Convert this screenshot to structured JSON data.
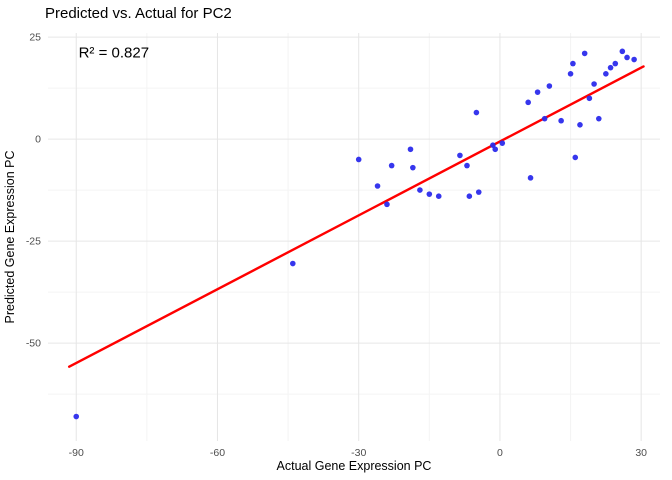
{
  "chart_data": {
    "type": "scatter",
    "title": "Predicted vs. Actual for PC2",
    "xlabel": "Actual Gene Expression PC",
    "ylabel": "Predicted Gene Expression PC",
    "xlim": [
      -96,
      34
    ],
    "ylim": [
      -74,
      26
    ],
    "x_ticks": [
      -90,
      -60,
      -30,
      0,
      30
    ],
    "y_ticks": [
      25,
      0,
      -25,
      -50
    ],
    "x_minor_ticks": [
      -75,
      -45,
      -15,
      15
    ],
    "y_minor_ticks": [
      12.5,
      -12.5,
      -37.5,
      -62.5
    ],
    "grid": true,
    "legend": "none",
    "annotation": {
      "text": "R² = 0.827",
      "x": -89.5,
      "y": 20
    },
    "r_squared": 0.827,
    "colors": {
      "point": "#2b2bec",
      "line": "#ff0000",
      "grid_major": "#e6e6e6",
      "grid_minor": "#f4f4f4",
      "tick_label": "#4d4d4d",
      "axis_title": "#000000",
      "background": "#ffffff"
    },
    "regression_line": {
      "x1": -91.5,
      "y1": -55.8,
      "x2": 30.5,
      "y2": 17.8
    },
    "points": [
      [
        -90,
        -68
      ],
      [
        -44,
        -30.5
      ],
      [
        -30,
        -5
      ],
      [
        -26,
        -11.5
      ],
      [
        -24,
        -16
      ],
      [
        -23,
        -6.5
      ],
      [
        -19,
        -2.5
      ],
      [
        -18.5,
        -7
      ],
      [
        -17,
        -12.5
      ],
      [
        -15,
        -13.5
      ],
      [
        -13,
        -14
      ],
      [
        -8.5,
        -4
      ],
      [
        -7,
        -6.5
      ],
      [
        -6.5,
        -14
      ],
      [
        -5,
        6.5
      ],
      [
        -4.5,
        -13
      ],
      [
        -1.5,
        -1.5
      ],
      [
        -1,
        -2.5
      ],
      [
        0.5,
        -1
      ],
      [
        6,
        9
      ],
      [
        6.5,
        -9.5
      ],
      [
        8,
        11.5
      ],
      [
        9.5,
        5
      ],
      [
        10.5,
        13
      ],
      [
        13,
        4.5
      ],
      [
        15,
        16
      ],
      [
        15.5,
        18.5
      ],
      [
        16,
        -4.5
      ],
      [
        17,
        3.5
      ],
      [
        18,
        21
      ],
      [
        19,
        10
      ],
      [
        20,
        13.5
      ],
      [
        21,
        5
      ],
      [
        22.5,
        16
      ],
      [
        23.5,
        17.5
      ],
      [
        24.5,
        18.5
      ],
      [
        26,
        21.5
      ],
      [
        27,
        20
      ],
      [
        28.5,
        19.5
      ]
    ]
  }
}
